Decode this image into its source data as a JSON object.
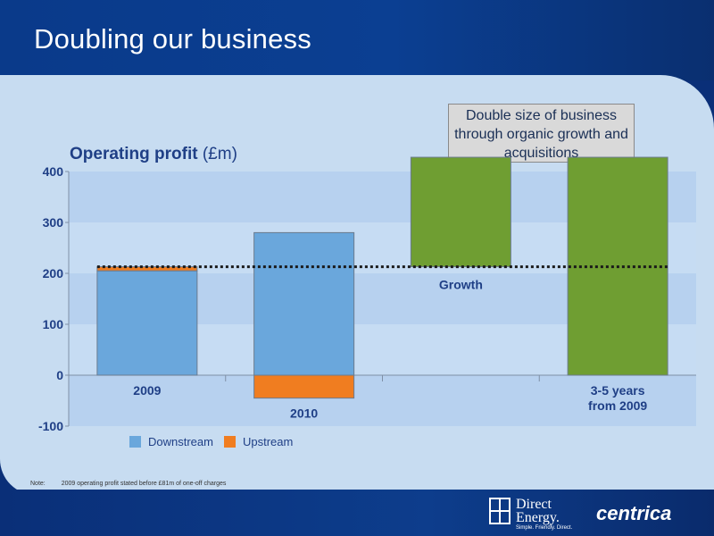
{
  "slide": {
    "title": "Doubling our business",
    "callout": "Double size of business through organic growth and acquisitions",
    "note_label": "Note:",
    "note_text": "2009 operating profit stated before £81m of one-off charges"
  },
  "logos": {
    "direct_energy_line1": "Direct",
    "direct_energy_line2": "Energy.",
    "direct_energy_tagline": "Simple. Friendly. Direct.",
    "centrica": "centrica"
  },
  "colors": {
    "downstream": "#6aa7dc",
    "upstream": "#f07d20",
    "growth": "#6f9e32",
    "header": "#0a3a8a",
    "text": "#1f3f86"
  },
  "chart_data": {
    "type": "bar",
    "ylabel_bold": "Operating profit",
    "ylabel_unit": "(£m)",
    "ylim": [
      -100,
      400
    ],
    "yticks": [
      -100,
      0,
      100,
      200,
      300,
      400
    ],
    "categories": [
      "2009",
      "2010",
      "",
      "3-5 years\nfrom 2009"
    ],
    "series": [
      {
        "name": "Downstream",
        "values": [
          205,
          280,
          null,
          null
        ]
      },
      {
        "name": "Upstream",
        "values": [
          8,
          -45,
          null,
          null
        ]
      },
      {
        "name": "Growth",
        "values": [
          null,
          null,
          [
            213,
            428
          ],
          428
        ]
      }
    ],
    "annotations": [
      {
        "text": "Growth"
      }
    ],
    "reference_line": 213,
    "legend": [
      "Downstream",
      "Upstream"
    ],
    "legend_position": "bottom"
  }
}
